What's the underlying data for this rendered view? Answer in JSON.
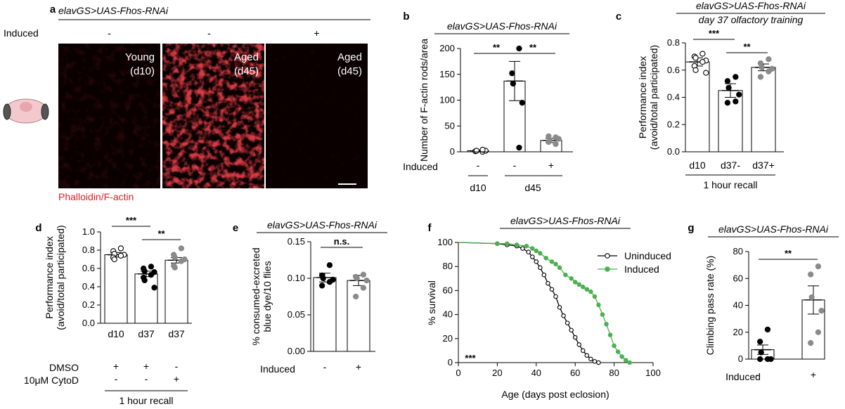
{
  "chart_data": [
    {
      "panel": "a",
      "type": "image",
      "title": "elavGS>UAS-Fhos-RNAi",
      "row_label": "Induced",
      "induced": [
        "-",
        "-",
        "+"
      ],
      "image_labels": [
        [
          "Young",
          "(d10)"
        ],
        [
          "Aged",
          "(d45)"
        ],
        [
          "Aged",
          "(d45)"
        ]
      ],
      "caption": "Phalloidin/F-actin",
      "intensity": [
        0.12,
        0.85,
        0.08
      ],
      "colors": {
        "stain": "#e8141e",
        "caption": "#e0202a"
      }
    },
    {
      "panel": "b",
      "type": "bar",
      "title": "elavGS>UAS-Fhos-RNAi",
      "ylabel": "Number of F-actin rods/area",
      "ylim": [
        0,
        200
      ],
      "yticks": [
        0,
        50,
        100,
        150,
        200
      ],
      "row_label": "Induced",
      "induced": [
        "-",
        "-",
        "+"
      ],
      "group_labels": [
        "d10",
        "d45"
      ],
      "values": [
        2,
        137,
        22
      ],
      "errors": [
        1,
        38,
        4
      ],
      "points": [
        [
          0,
          1,
          2,
          2,
          4
        ],
        [
          200,
          152,
          132,
          95,
          8
        ],
        [
          15,
          19,
          22,
          25,
          28,
          30
        ]
      ],
      "fills": [
        "white",
        "black",
        "gray"
      ],
      "significance": [
        {
          "a": 0,
          "b": 1,
          "text": "**"
        },
        {
          "a": 1,
          "b": 2,
          "text": "**"
        }
      ]
    },
    {
      "panel": "c",
      "type": "bar",
      "title": "elavGS>UAS-Fhos-RNAi",
      "subtitle": "day 37 olfactory training",
      "ylabel": "Performance index\n(avoid/total participated)",
      "ylim": [
        0,
        0.8
      ],
      "yticks": [
        0,
        0.2,
        0.4,
        0.6,
        0.8
      ],
      "categories": [
        "d10",
        "d37-",
        "d37+"
      ],
      "xlabel": "1 hour recall",
      "values": [
        0.66,
        0.45,
        0.62
      ],
      "errors": [
        0.03,
        0.05,
        0.025
      ],
      "points": [
        [
          0.72,
          0.7,
          0.69,
          0.67,
          0.66,
          0.63,
          0.6,
          0.58
        ],
        [
          0.55,
          0.52,
          0.47,
          0.42,
          0.37,
          0.36
        ],
        [
          0.68,
          0.65,
          0.62,
          0.61,
          0.59,
          0.55
        ]
      ],
      "fills": [
        "white",
        "black",
        "gray"
      ],
      "significance": [
        {
          "a": 0,
          "b": 1,
          "text": "***"
        },
        {
          "a": 1,
          "b": 2,
          "text": "**"
        }
      ]
    },
    {
      "panel": "d",
      "type": "bar",
      "ylabel": "Performance index\n(avoid/total participated)",
      "ylim": [
        0,
        1.0
      ],
      "yticks": [
        0,
        0.2,
        0.4,
        0.6,
        0.8,
        1.0
      ],
      "categories": [
        "d10",
        "d37",
        "d37"
      ],
      "rows": [
        {
          "label": "DMSO",
          "values": [
            "+",
            "+",
            "-"
          ]
        },
        {
          "label": "10μM CytoD",
          "values": [
            "-",
            "-",
            "+"
          ]
        }
      ],
      "xlabel": "1 hour recall",
      "values": [
        0.75,
        0.54,
        0.69
      ],
      "errors": [
        0.025,
        0.03,
        0.03
      ],
      "points": [
        [
          0.82,
          0.79,
          0.76,
          0.75,
          0.74,
          0.72,
          0.7
        ],
        [
          0.62,
          0.6,
          0.57,
          0.56,
          0.53,
          0.5,
          0.47,
          0.39
        ],
        [
          0.82,
          0.75,
          0.72,
          0.7,
          0.68,
          0.63,
          0.61
        ]
      ],
      "fills": [
        "white",
        "black",
        "gray"
      ],
      "significance": [
        {
          "a": 0,
          "b": 1,
          "text": "***"
        },
        {
          "a": 1,
          "b": 2,
          "text": "**"
        }
      ]
    },
    {
      "panel": "e",
      "type": "bar",
      "title": "elavGS>UAS-Fhos-RNAi",
      "ylabel": "% consumed-excreted\nblue dye/10 flies",
      "ylim": [
        0,
        0.15
      ],
      "yticks": [
        0.0,
        0.05,
        0.1,
        0.15
      ],
      "row_label": "Induced",
      "induced": [
        "-",
        "+"
      ],
      "values": [
        0.101,
        0.097
      ],
      "errors": [
        0.006,
        0.007
      ],
      "points": [
        [
          0.118,
          0.104,
          0.1,
          0.098,
          0.095,
          0.09
        ],
        [
          0.105,
          0.102,
          0.1,
          0.097,
          0.087,
          0.075
        ]
      ],
      "fills": [
        "black",
        "gray"
      ],
      "significance": [
        {
          "a": 0,
          "b": 1,
          "text": "n.s."
        }
      ]
    },
    {
      "panel": "f",
      "type": "line",
      "title": "elavGS>UAS-Fhos-RNAi",
      "xlabel": "Age (days post eclosion)",
      "ylabel": "% survival",
      "xlim": [
        0,
        100
      ],
      "ylim": [
        0,
        100
      ],
      "xticks": [
        0,
        20,
        40,
        60,
        80,
        100
      ],
      "yticks": [
        0,
        20,
        40,
        60,
        80,
        100
      ],
      "annotation": "***",
      "legend": "top-right",
      "series": [
        {
          "name": "Uninduced",
          "color": "#000000",
          "open": true,
          "x": [
            0,
            20,
            25,
            30,
            33,
            36,
            38,
            40,
            42,
            44,
            46,
            48,
            50,
            52,
            54,
            56,
            58,
            60,
            62,
            64,
            66,
            68,
            70,
            72
          ],
          "y": [
            100,
            99,
            98,
            97,
            95,
            92,
            88,
            84,
            79,
            73,
            66,
            61,
            55,
            46,
            39,
            33,
            27,
            21,
            15,
            10,
            6,
            3,
            1,
            0
          ]
        },
        {
          "name": "Induced",
          "color": "#4caf50",
          "open": false,
          "x": [
            0,
            20,
            25,
            30,
            35,
            38,
            40,
            42,
            45,
            48,
            50,
            52,
            55,
            58,
            60,
            62,
            64,
            66,
            68,
            70,
            72,
            74,
            76,
            78,
            80,
            82,
            84,
            86,
            88
          ],
          "y": [
            100,
            99,
            99,
            98,
            97,
            95,
            93,
            91,
            87,
            84,
            82,
            79,
            73,
            70,
            67,
            65,
            63,
            61,
            59,
            55,
            48,
            40,
            32,
            23,
            14,
            9,
            5,
            2,
            0
          ]
        }
      ]
    },
    {
      "panel": "g",
      "type": "bar",
      "title": "elavGS>UAS-Fhos-RNAi",
      "ylabel": "Climbing pass rate (%)",
      "ylim": [
        0,
        80
      ],
      "yticks": [
        0,
        20,
        40,
        60,
        80
      ],
      "row_label": "Induced",
      "induced": [
        "-",
        "+"
      ],
      "values": [
        7,
        44
      ],
      "errors": [
        3.5,
        10.5
      ],
      "points": [
        [
          22,
          13,
          5,
          0,
          0,
          0
        ],
        [
          69,
          63,
          46,
          36,
          20,
          12
        ]
      ],
      "fills": [
        "black",
        "gray"
      ],
      "significance": [
        {
          "a": 0,
          "b": 1,
          "text": "**"
        }
      ]
    }
  ]
}
